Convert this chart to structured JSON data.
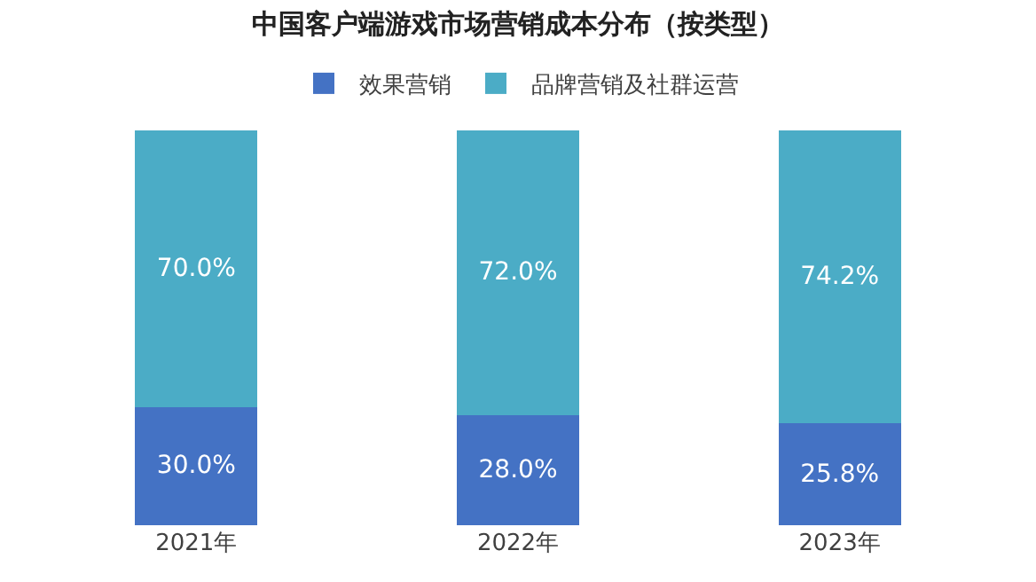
{
  "chart_data": {
    "type": "bar",
    "title": "中国客户端游戏市场营销成本分布（按类型）",
    "categories": [
      "2021年",
      "2022年",
      "2023年"
    ],
    "stacked": true,
    "legend": "top",
    "series": [
      {
        "name": "效果营销",
        "color": "#4472c4",
        "values": [
          30,
          28,
          25.8
        ],
        "value_labels": [
          "30.0%",
          "28.0%",
          "25.8%"
        ]
      },
      {
        "name": "品牌营销及社群运营",
        "color": "#4bacc6",
        "values": [
          70,
          72,
          74.2
        ],
        "value_labels": [
          "70.0%",
          "72.0%",
          "74.2%"
        ]
      }
    ]
  }
}
